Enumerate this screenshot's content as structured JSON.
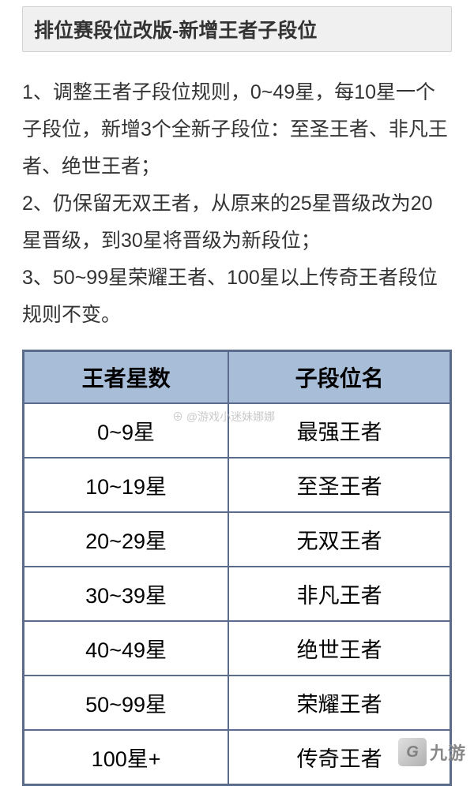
{
  "header": {
    "title": "排位赛段位改版-新增王者子段位"
  },
  "description": {
    "line1": "1、调整王者子段位规则，0~49星，每10星一个子段位，新增3个全新子段位：至圣王者、非凡王者、绝世王者；",
    "line2": "2、仍保留无双王者，从原来的25星晋级改为20星晋级，到30星将晋级为新段位；",
    "line3": "3、50~99星荣耀王者、100星以上传奇王者段位规则不变。"
  },
  "table": {
    "type": "table",
    "header_bg_color": "#a8bdd8",
    "border_color": "#5a6b8c",
    "cell_bg_color": "#ffffff",
    "text_color": "#000000",
    "header_fontsize": 28,
    "cell_fontsize": 27,
    "columns": [
      {
        "label": "王者星数",
        "width": "48%"
      },
      {
        "label": "子段位名",
        "width": "52%"
      }
    ],
    "rows": [
      {
        "stars": "0~9星",
        "rank": "最强王者"
      },
      {
        "stars": "10~19星",
        "rank": "至圣王者"
      },
      {
        "stars": "20~29星",
        "rank": "无双王者"
      },
      {
        "stars": "30~39星",
        "rank": "非凡王者"
      },
      {
        "stars": "40~49星",
        "rank": "绝世王者"
      },
      {
        "stars": "50~99星",
        "rank": "荣耀王者"
      },
      {
        "stars": "100星+",
        "rank": "传奇王者"
      }
    ]
  },
  "watermark": {
    "text": "⊕ @游戏小迷妹娜娜"
  },
  "logo": {
    "icon": "G",
    "text": "九游"
  },
  "styling": {
    "body_bg": "#ffffff",
    "title_bar_bg": "#f0f0f0",
    "title_bar_border": "#d0d0d0",
    "text_color": "#333333",
    "description_fontsize": 25,
    "title_fontsize": 25
  }
}
